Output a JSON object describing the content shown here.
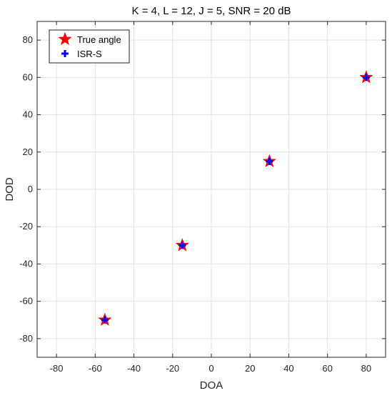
{
  "chart_data": {
    "type": "scatter",
    "title": "K = 4, L = 12, J = 5, SNR = 20 dB",
    "xlabel": "DOA",
    "ylabel": "DOD",
    "xlim": [
      -90,
      90
    ],
    "ylim": [
      -90,
      90
    ],
    "xticks": [
      -80,
      -60,
      -40,
      -20,
      0,
      20,
      40,
      60,
      80
    ],
    "yticks": [
      -80,
      -60,
      -40,
      -20,
      0,
      20,
      40,
      60,
      80
    ],
    "grid": true,
    "legend_position": "top-left",
    "series": [
      {
        "name": "True angle",
        "marker": "star",
        "color": "#ff0000",
        "points": [
          {
            "x": -55,
            "y": -70
          },
          {
            "x": -15,
            "y": -30
          },
          {
            "x": 30,
            "y": 15
          },
          {
            "x": 80,
            "y": 60
          }
        ]
      },
      {
        "name": "ISR-S",
        "marker": "plus",
        "color": "#0000ff",
        "points": [
          {
            "x": -55,
            "y": -70
          },
          {
            "x": -15,
            "y": -30
          },
          {
            "x": 30,
            "y": 15
          },
          {
            "x": 80,
            "y": 60
          }
        ]
      }
    ]
  }
}
